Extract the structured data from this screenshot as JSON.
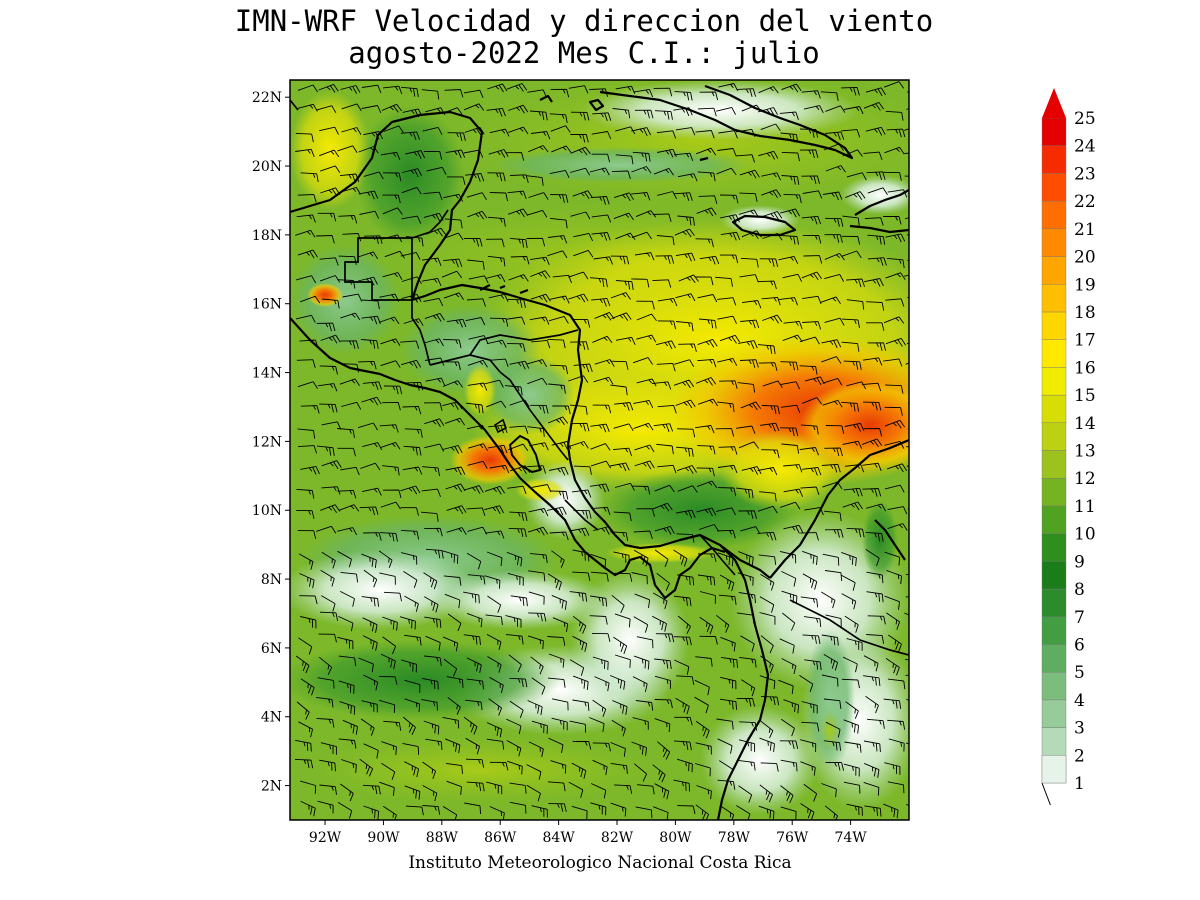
{
  "title": {
    "line1": "IMN-WRF Velocidad y direccion del viento",
    "line2": "agosto-2022 Mes C.I.: julio"
  },
  "credit": "Instituto Meteorologico Nacional Costa Rica",
  "map": {
    "lon_range": [
      -93.2,
      -72.0
    ],
    "lat_range": [
      1.0,
      22.5
    ],
    "lat_ticks": [
      "22N",
      "20N",
      "18N",
      "16N",
      "14N",
      "12N",
      "10N",
      "8N",
      "6N",
      "4N",
      "2N"
    ],
    "lon_ticks": [
      "92W",
      "90W",
      "88W",
      "86W",
      "84W",
      "82W",
      "80W",
      "78W",
      "76W",
      "74W"
    ],
    "field": "wind speed (shaded) and wind barbs"
  },
  "colorbar": {
    "labels": [
      "1",
      "2",
      "3",
      "4",
      "5",
      "6",
      "7",
      "8",
      "9",
      "10",
      "11",
      "12",
      "13",
      "14",
      "15",
      "16",
      "17",
      "18",
      "19",
      "20",
      "21",
      "22",
      "23",
      "24",
      "25"
    ],
    "colors": [
      "#e6f3e8",
      "#cfe8d2",
      "#b4dbb8",
      "#97cb9a",
      "#7cbd7e",
      "#5fad60",
      "#429d43",
      "#2c8c2c",
      "#1a7d1a",
      "#2e8f1e",
      "#52a221",
      "#76b320",
      "#9cc31d",
      "#bcd112",
      "#d6de06",
      "#f0ec00",
      "#ffe900",
      "#ffd600",
      "#ffbe00",
      "#ffa500",
      "#ff8a00",
      "#ff6e00",
      "#ff4d00",
      "#f62c00",
      "#e50000"
    ],
    "arrow_color": "#e50000"
  }
}
